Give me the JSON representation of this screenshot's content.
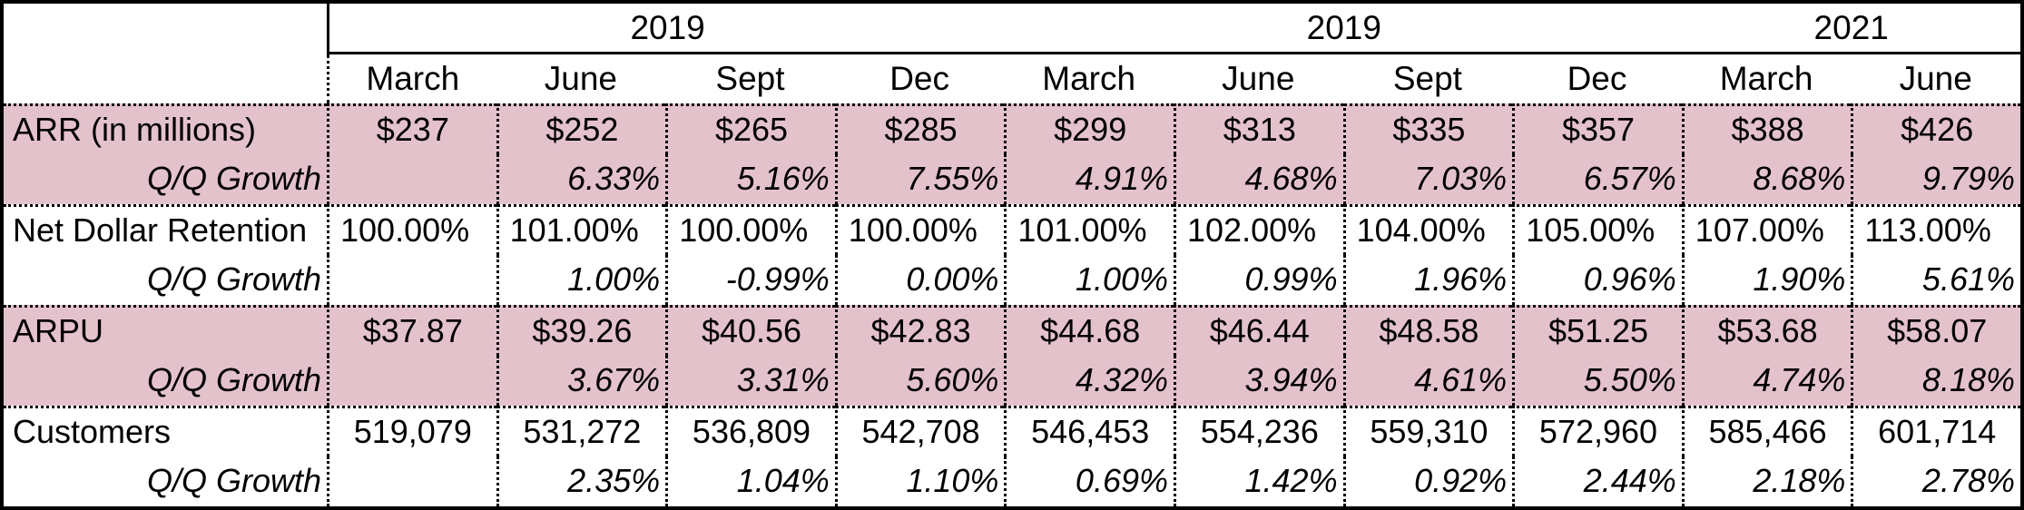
{
  "colors": {
    "highlight_row_bg": "#e4c2cc",
    "border": "#000000",
    "background": "#ffffff"
  },
  "chart_data": {
    "type": "table",
    "year_groups": [
      {
        "label": "2019",
        "span": 4
      },
      {
        "label": "2019",
        "span": 4
      },
      {
        "label": "2021",
        "span": 2
      }
    ],
    "columns": [
      "March",
      "June",
      "Sept",
      "Dec",
      "March",
      "June",
      "Sept",
      "Dec",
      "March",
      "June"
    ],
    "sections": [
      {
        "label": "ARR (in millions)",
        "highlighted": true,
        "value_align": "center",
        "values": [
          "$237",
          "$252",
          "$265",
          "$285",
          "$299",
          "$313",
          "$335",
          "$357",
          "$388",
          "$426"
        ],
        "growth_label": "Q/Q Growth",
        "growth_values": [
          "",
          "6.33%",
          "5.16%",
          "7.55%",
          "4.91%",
          "4.68%",
          "7.03%",
          "6.57%",
          "8.68%",
          "9.79%"
        ]
      },
      {
        "label": "Net Dollar Retention",
        "highlighted": false,
        "value_align": "left",
        "values": [
          "100.00%",
          "101.00%",
          "100.00%",
          "100.00%",
          "101.00%",
          "102.00%",
          "104.00%",
          "105.00%",
          "107.00%",
          "113.00%"
        ],
        "growth_label": "Q/Q Growth",
        "growth_values": [
          "",
          "1.00%",
          "-0.99%",
          "0.00%",
          "1.00%",
          "0.99%",
          "1.96%",
          "0.96%",
          "1.90%",
          "5.61%"
        ]
      },
      {
        "label": "ARPU",
        "highlighted": true,
        "value_align": "center",
        "values": [
          "$37.87",
          "$39.26",
          "$40.56",
          "$42.83",
          "$44.68",
          "$46.44",
          "$48.58",
          "$51.25",
          "$53.68",
          "$58.07"
        ],
        "growth_label": "Q/Q Growth",
        "growth_values": [
          "",
          "3.67%",
          "3.31%",
          "5.60%",
          "4.32%",
          "3.94%",
          "4.61%",
          "5.50%",
          "4.74%",
          "8.18%"
        ]
      },
      {
        "label": "Customers",
        "highlighted": false,
        "value_align": "center",
        "values": [
          "519,079",
          "531,272",
          "536,809",
          "542,708",
          "546,453",
          "554,236",
          "559,310",
          "572,960",
          "585,466",
          "601,714"
        ],
        "growth_label": "Q/Q Growth",
        "growth_values": [
          "",
          "2.35%",
          "1.04%",
          "1.10%",
          "0.69%",
          "1.42%",
          "0.92%",
          "2.44%",
          "2.18%",
          "2.78%"
        ]
      }
    ]
  }
}
